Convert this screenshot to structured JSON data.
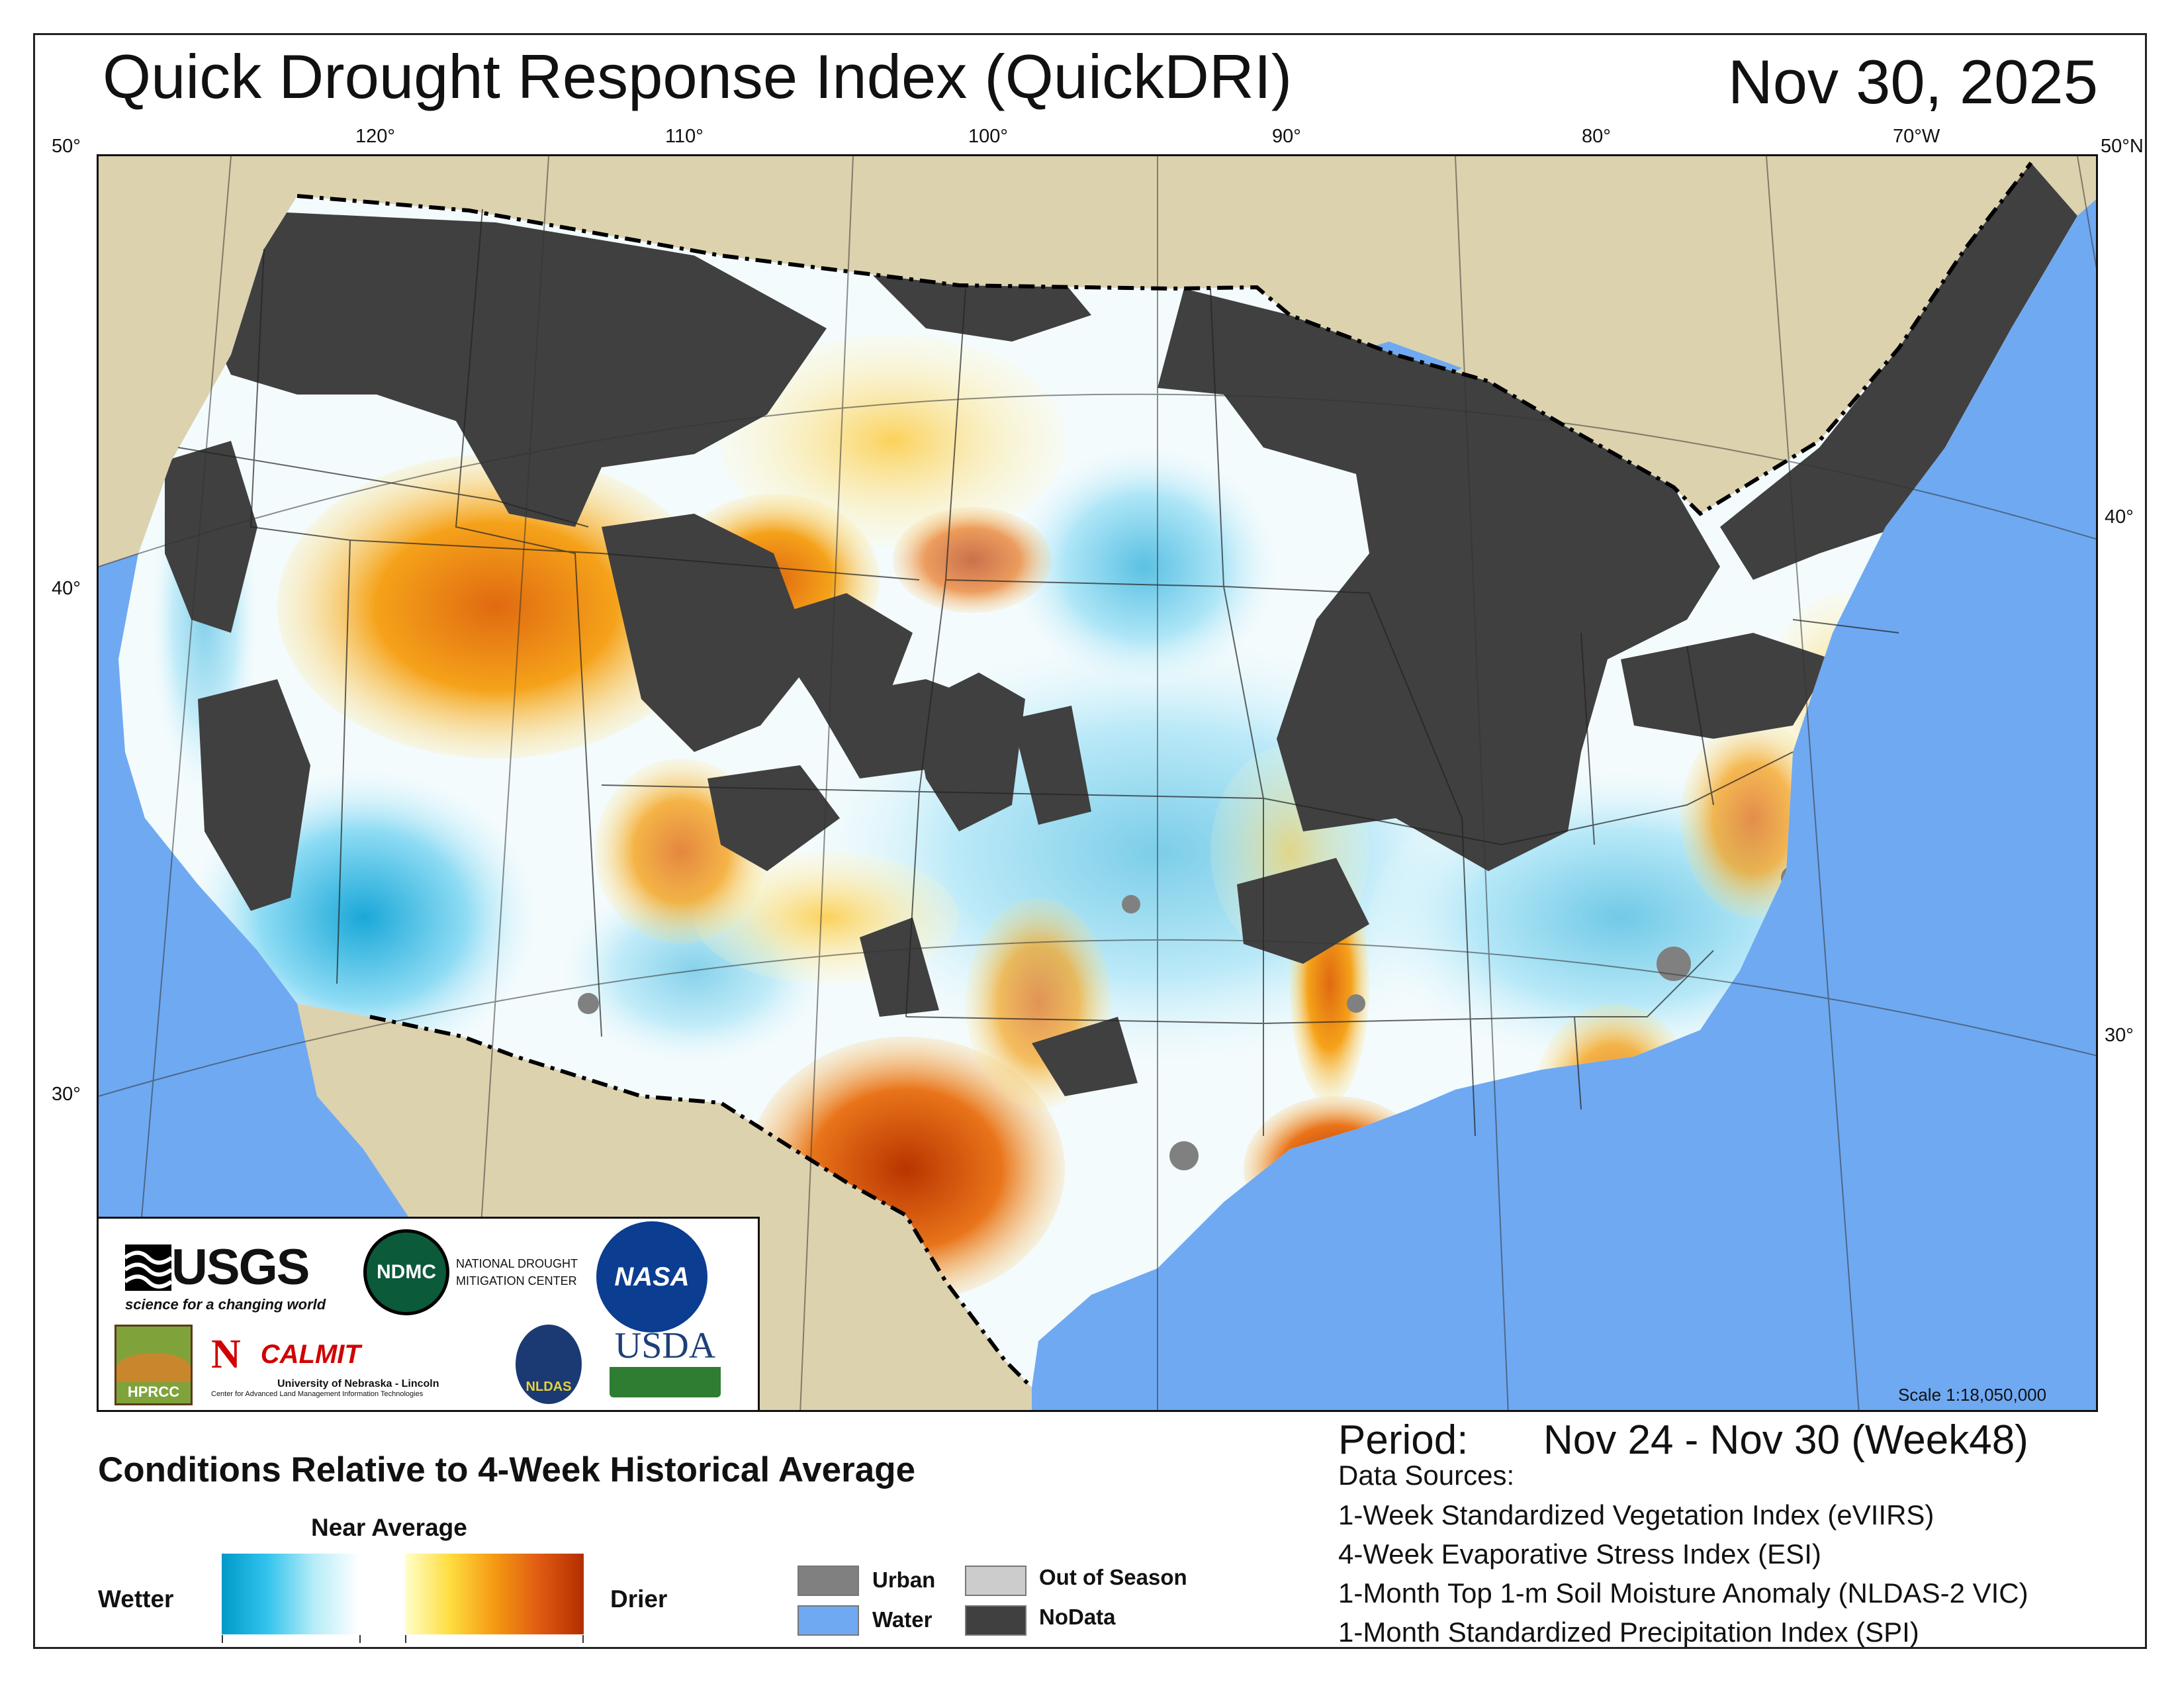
{
  "header": {
    "title": "Quick Drought Response Index (QuickDRI)",
    "date": "Nov 30, 2025"
  },
  "map": {
    "lat_labels": [
      "50°",
      "40°",
      "30°",
      "50°N",
      "40°",
      "30°"
    ],
    "lon_labels": [
      "120°",
      "110°",
      "100°",
      "90°",
      "80°",
      "70°W"
    ],
    "scale": "Scale 1:18,050,000",
    "colors": {
      "water": "#6fa9f2",
      "land_outside": "#ddd2ae",
      "nodata": "#404040",
      "urban": "#808080",
      "out_of_season": "#cccccc",
      "wetter": "#0099c9",
      "near_average": "#ffffff",
      "drier": "#b32e00"
    }
  },
  "logos": {
    "usgs": "USGS",
    "usgs_tagline": "science for a changing world",
    "ndmc": "NDMC",
    "ndmc_line1": "NATIONAL DROUGHT",
    "ndmc_line2": "MITIGATION CENTER",
    "nasa": "NASA",
    "hprcc": "HPRCC",
    "calmit": "CALMIT",
    "calmit_line1": "University of Nebraska - Lincoln",
    "calmit_line2": "Center for Advanced Land Management Information Technologies",
    "nldas": "NLDAS",
    "usda": "USDA"
  },
  "legend": {
    "title": "Conditions Relative to 4-Week Historical Average",
    "near_average": "Near Average",
    "wetter": "Wetter",
    "drier": "Drier",
    "categories": [
      {
        "label": "Urban",
        "color": "#808080"
      },
      {
        "label": "Water",
        "color": "#6fa9f2"
      },
      {
        "label": "Out of Season",
        "color": "#cccccc"
      },
      {
        "label": "NoData",
        "color": "#404040"
      }
    ]
  },
  "period": {
    "label": "Period:",
    "value": "Nov 24 - Nov 30 (Week48)"
  },
  "data_sources": {
    "heading": "Data Sources:",
    "items": [
      "1-Week Standardized Vegetation Index (eVIIRS)",
      "4-Week Evaporative Stress Index (ESI)",
      "1-Month Top 1-m Soil Moisture Anomaly (NLDAS-2 VIC)",
      "1-Month Standardized Precipitation Index (SPI)"
    ]
  }
}
